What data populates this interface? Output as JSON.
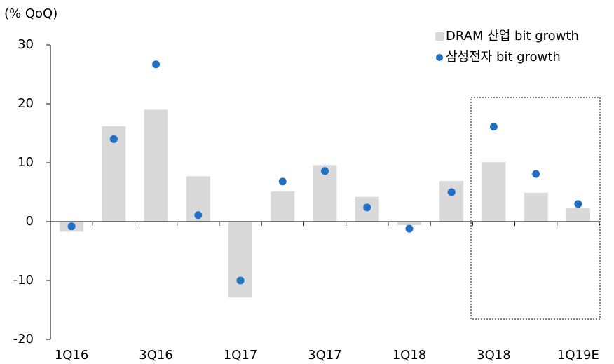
{
  "chart_data": {
    "type": "bar",
    "y_label": "(% QoQ)",
    "categories": [
      "1Q16",
      null,
      "3Q16",
      null,
      "1Q17",
      null,
      "3Q17",
      null,
      "1Q18",
      null,
      "3Q18",
      null,
      "1Q19E"
    ],
    "series": [
      {
        "name": "DRAM 산업 bit growth",
        "type": "bar",
        "color": "#d9d9d9",
        "values": [
          -1.7,
          16.2,
          19.0,
          7.7,
          -12.9,
          5.1,
          9.6,
          4.2,
          -0.6,
          6.9,
          10.1,
          4.9,
          2.3
        ]
      },
      {
        "name": "삼성전자 bit growth",
        "type": "scatter",
        "color": "#1f6fc5",
        "values": [
          -0.8,
          14.0,
          26.7,
          1.1,
          -10.0,
          6.8,
          8.6,
          2.4,
          -1.2,
          5.0,
          16.1,
          8.1,
          3.0
        ]
      }
    ],
    "ylim": [
      -20,
      30
    ],
    "yticks": [
      -20,
      -10,
      0,
      10,
      20,
      30
    ],
    "grid": false,
    "legend": "top-right"
  }
}
